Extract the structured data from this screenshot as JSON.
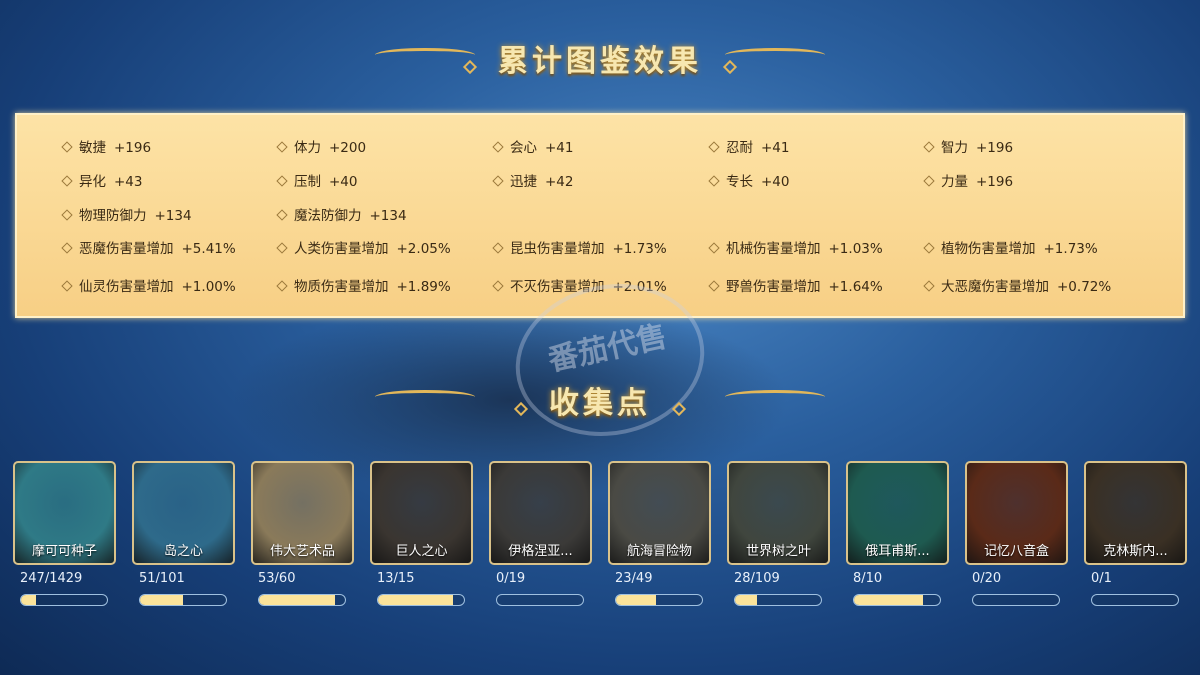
{
  "header": {
    "title": "累计图鉴效果"
  },
  "stats": [
    [
      {
        "name": "敏捷",
        "value": "+196"
      },
      {
        "name": "体力",
        "value": "+200"
      },
      {
        "name": "会心",
        "value": "+41"
      },
      {
        "name": "忍耐",
        "value": "+41"
      },
      {
        "name": "智力",
        "value": "+196"
      }
    ],
    [
      {
        "name": "异化",
        "value": "+43"
      },
      {
        "name": "压制",
        "value": "+40"
      },
      {
        "name": "迅捷",
        "value": "+42"
      },
      {
        "name": "专长",
        "value": "+40"
      },
      {
        "name": "力量",
        "value": "+196"
      }
    ],
    [
      {
        "name": "物理防御力",
        "value": "+134"
      },
      {
        "name": "魔法防御力",
        "value": "+134"
      }
    ],
    [
      {
        "name": "恶魔伤害量增加",
        "value": "+5.41%"
      },
      {
        "name": "人类伤害量增加",
        "value": "+2.05%"
      },
      {
        "name": "昆虫伤害量增加",
        "value": "+1.73%"
      },
      {
        "name": "机械伤害量增加",
        "value": "+1.03%"
      },
      {
        "name": "植物伤害量增加",
        "value": "+1.73%"
      }
    ],
    [
      {
        "name": "仙灵伤害量增加",
        "value": "+1.00%"
      },
      {
        "name": "物质伤害量增加",
        "value": "+1.89%"
      },
      {
        "name": "不灭伤害量增加",
        "value": "+2.01%"
      },
      {
        "name": "野兽伤害量增加",
        "value": "+1.64%"
      },
      {
        "name": "大恶魔伤害量增加",
        "value": "+0.72%"
      }
    ]
  ],
  "collection": {
    "title": "收集点",
    "items": [
      {
        "name": "摩可可种子",
        "count": "247/1429",
        "progress": 0.173,
        "color": "#2f7a86"
      },
      {
        "name": "岛之心",
        "count": "51/101",
        "progress": 0.505,
        "color": "#2e6a8a"
      },
      {
        "name": "伟大艺术品",
        "count": "53/60",
        "progress": 0.883,
        "color": "#8a7a5a"
      },
      {
        "name": "巨人之心",
        "count": "13/15",
        "progress": 0.867,
        "color": "#3a3530"
      },
      {
        "name": "伊格涅亚...",
        "count": "0/19",
        "progress": 0,
        "color": "#3b3a38"
      },
      {
        "name": "航海冒险物",
        "count": "23/49",
        "progress": 0.469,
        "color": "#4a4a44"
      },
      {
        "name": "世界树之叶",
        "count": "28/109",
        "progress": 0.257,
        "color": "#40463e"
      },
      {
        "name": "俄耳甫斯...",
        "count": "8/10",
        "progress": 0.8,
        "color": "#1e5a50"
      },
      {
        "name": "记忆八音盒",
        "count": "0/20",
        "progress": 0,
        "color": "#5a2a18"
      },
      {
        "name": "克林斯内...",
        "count": "0/1",
        "progress": 0,
        "color": "#3a3024"
      }
    ]
  },
  "watermark": "番茄代售"
}
